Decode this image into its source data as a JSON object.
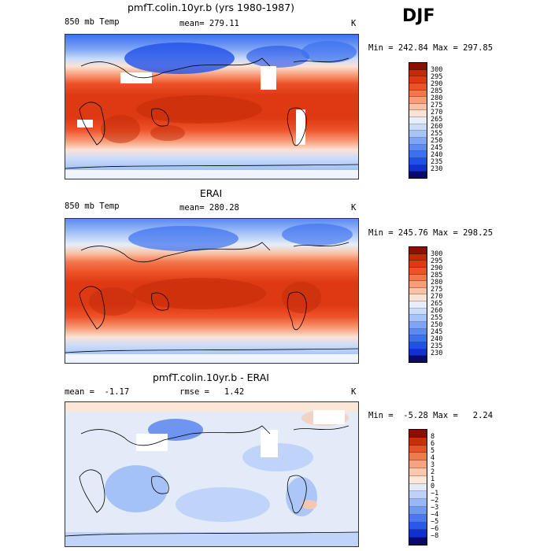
{
  "season": "DJF",
  "panels": [
    {
      "title": "pmfT.colin.10yr.b (yrs 1980-1987)",
      "variable": "850 mb Temp",
      "stat_left": "",
      "mean_text": "mean= 279.11",
      "unit": "K",
      "minmax": "Min = 242.84 Max = 297.85",
      "colorbar_levels": [
        "300",
        "295",
        "290",
        "285",
        "280",
        "275",
        "270",
        "265",
        "260",
        "255",
        "250",
        "245",
        "240",
        "235",
        "230"
      ]
    },
    {
      "title": "ERAI",
      "variable": "850 mb Temp",
      "stat_left": "",
      "mean_text": "mean= 280.28",
      "unit": "K",
      "minmax": "Min = 245.76 Max = 298.25",
      "colorbar_levels": [
        "300",
        "295",
        "290",
        "285",
        "280",
        "275",
        "270",
        "265",
        "260",
        "255",
        "250",
        "245",
        "240",
        "235",
        "230"
      ]
    },
    {
      "title": "pmfT.colin.10yr.b - ERAI",
      "variable": "",
      "stat_left": "mean =  -1.17",
      "mean_text": "rmse =   1.42",
      "unit": "K",
      "minmax": "Min =  -5.28 Max =   2.24",
      "colorbar_levels": [
        "8",
        "6",
        "5",
        "4",
        "3",
        "2",
        "1",
        "0",
        "−1",
        "−2",
        "−3",
        "−4",
        "−5",
        "−6",
        "−8"
      ]
    }
  ],
  "colors": {
    "temp_scale": [
      "#0a0a6e",
      "#0a1a9e",
      "#1030d0",
      "#2050e8",
      "#3c70f0",
      "#5a8af2",
      "#7ea5f5",
      "#a6c4f8",
      "#cadcf9",
      "#e6eef8",
      "#fbe2d6",
      "#f9c2a6",
      "#f79d78",
      "#f4764c",
      "#ee5228",
      "#dd3a14",
      "#c22a08",
      "#8a1000"
    ],
    "diff_scale": [
      "#0a0a6e",
      "#1030d0",
      "#2a58ea",
      "#4a78ee",
      "#6e98f2",
      "#96b8f6",
      "#bdd2f8",
      "#e2ebf7",
      "#fbe6d8",
      "#f9c8ad",
      "#f5a47f",
      "#ef7a4e",
      "#e45428",
      "#c8300a",
      "#8a1000"
    ]
  }
}
